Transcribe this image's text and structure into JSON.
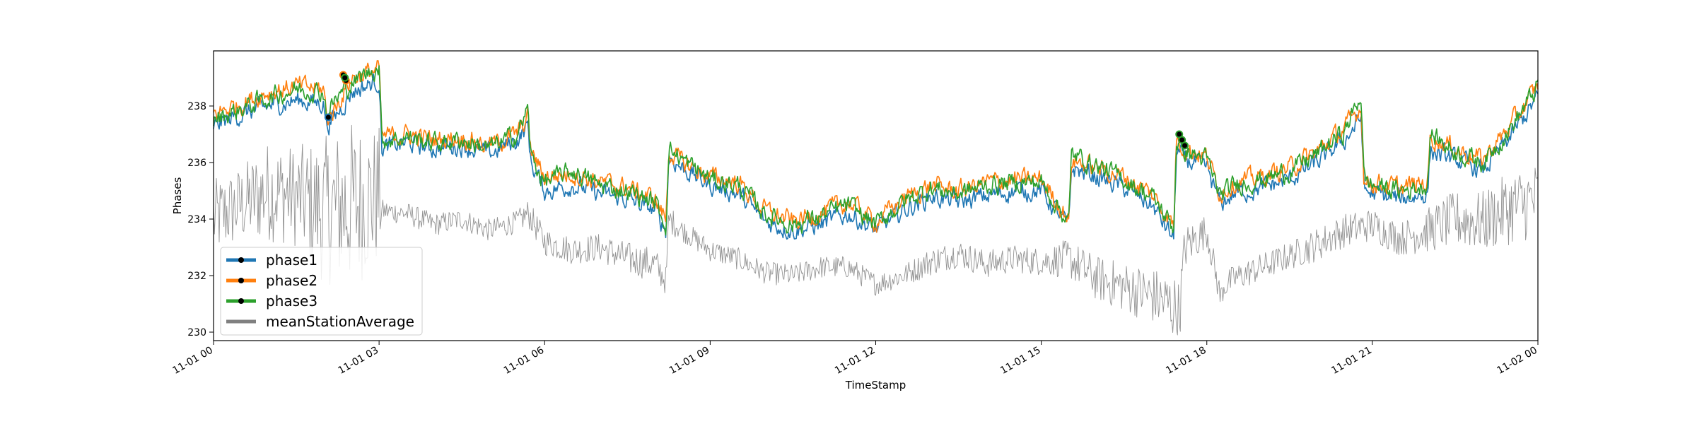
{
  "chart_data": {
    "type": "line",
    "title": "",
    "xlabel": "TimeStamp",
    "ylabel": "Phases",
    "xlim": [
      "2017-11-01 00:00",
      "2017-11-02 00:00"
    ],
    "ylim": [
      229.7,
      239.95
    ],
    "x_tick_labels": [
      "11-01 00",
      "11-01 03",
      "11-01 06",
      "11-01 09",
      "11-01 12",
      "11-01 15",
      "11-01 18",
      "11-01 21",
      "11-02 00"
    ],
    "x_tick_hours": [
      0,
      3,
      6,
      9,
      12,
      15,
      18,
      21,
      24
    ],
    "y_ticks": [
      230,
      232,
      234,
      236,
      238
    ],
    "grid": false,
    "legend_position": "lower-left",
    "x_unit": "hours since 11-01 00",
    "series": [
      {
        "name": "phase1",
        "color": "#1f77b4",
        "x": [
          0,
          0.5,
          1,
          1.5,
          2,
          2.05,
          2.2,
          2.5,
          3.0,
          3.05,
          3.5,
          4,
          4.5,
          5,
          5.5,
          5.7,
          5.75,
          6,
          6.5,
          7,
          7.5,
          8,
          8.2,
          8.25,
          8.5,
          9,
          9.5,
          10,
          10.5,
          11,
          11.5,
          12,
          12.5,
          13,
          13.5,
          14,
          14.5,
          15,
          15.5,
          15.55,
          16,
          16.5,
          17,
          17.4,
          17.45,
          17.6,
          18,
          18.25,
          18.3,
          18.5,
          19,
          19.5,
          20,
          20.5,
          20.8,
          20.85,
          21,
          21.5,
          22,
          22.05,
          22.5,
          23,
          23.5,
          24
        ],
        "y": [
          237.3,
          237.7,
          238.0,
          238.2,
          238.1,
          237.3,
          237.6,
          238.5,
          238.9,
          236.5,
          236.7,
          236.5,
          236.6,
          236.3,
          236.8,
          237.3,
          236.0,
          235.0,
          235.2,
          234.9,
          234.7,
          234.3,
          233.6,
          236.2,
          235.8,
          235.2,
          234.9,
          233.9,
          233.6,
          233.8,
          234.2,
          233.6,
          234.3,
          234.8,
          234.6,
          234.8,
          235.0,
          235.0,
          233.7,
          235.8,
          235.5,
          235.1,
          234.5,
          233.3,
          236.4,
          236.1,
          235.8,
          234.5,
          234.6,
          234.9,
          235.1,
          235.4,
          236.0,
          236.8,
          237.6,
          235.0,
          234.9,
          234.7,
          234.9,
          236.4,
          236.1,
          235.7,
          236.9,
          238.3
        ]
      },
      {
        "name": "phase2",
        "color": "#ff7f0e",
        "x": [
          0,
          0.5,
          1,
          1.5,
          2,
          2.05,
          2.2,
          2.5,
          3.0,
          3.05,
          3.5,
          4,
          4.5,
          5,
          5.5,
          5.7,
          5.75,
          6,
          6.5,
          7,
          7.5,
          8,
          8.2,
          8.25,
          8.5,
          9,
          9.5,
          10,
          10.5,
          11,
          11.5,
          12,
          12.5,
          13,
          13.5,
          14,
          14.5,
          15,
          15.5,
          15.55,
          16,
          16.5,
          17,
          17.4,
          17.45,
          17.6,
          18,
          18.25,
          18.3,
          18.5,
          19,
          19.5,
          20,
          20.5,
          20.8,
          20.85,
          21,
          21.5,
          22,
          22.05,
          22.5,
          23,
          23.5,
          24
        ],
        "y": [
          237.7,
          238.1,
          238.5,
          238.7,
          238.6,
          237.5,
          237.9,
          239.0,
          239.3,
          236.9,
          237.0,
          236.8,
          236.9,
          236.6,
          237.0,
          237.6,
          236.4,
          235.5,
          235.6,
          235.3,
          235.1,
          234.7,
          234.0,
          236.4,
          236.0,
          235.5,
          235.3,
          234.3,
          233.9,
          234.2,
          234.6,
          233.9,
          234.7,
          235.2,
          235.0,
          235.3,
          235.4,
          235.4,
          234.0,
          236.1,
          235.8,
          235.5,
          234.9,
          233.8,
          236.9,
          236.5,
          236.2,
          234.9,
          235.0,
          235.3,
          235.5,
          235.8,
          236.4,
          237.2,
          238.0,
          235.3,
          235.3,
          235.1,
          235.3,
          236.9,
          236.5,
          236.1,
          237.3,
          238.7
        ]
      },
      {
        "name": "phase3",
        "color": "#2ca02c",
        "x": [
          0,
          0.5,
          1,
          1.5,
          2,
          2.05,
          2.2,
          2.5,
          3.0,
          3.05,
          3.5,
          4,
          4.5,
          5,
          5.5,
          5.7,
          5.75,
          6,
          6.5,
          7,
          7.5,
          8,
          8.2,
          8.25,
          8.5,
          9,
          9.5,
          10,
          10.5,
          11,
          11.5,
          12,
          12.5,
          13,
          13.5,
          14,
          14.5,
          15,
          15.5,
          15.55,
          16,
          16.5,
          17,
          17.4,
          17.45,
          17.6,
          18,
          18.25,
          18.3,
          18.5,
          19,
          19.5,
          20,
          20.5,
          20.8,
          20.85,
          21,
          21.5,
          22,
          22.05,
          22.5,
          23,
          23.5,
          24
        ],
        "y": [
          237.5,
          237.9,
          238.3,
          238.6,
          238.5,
          237.7,
          238.2,
          238.8,
          239.4,
          236.8,
          236.9,
          236.7,
          236.8,
          236.5,
          237.0,
          237.9,
          236.2,
          235.3,
          235.7,
          235.2,
          235.0,
          234.6,
          233.8,
          236.5,
          236.1,
          235.4,
          235.2,
          234.2,
          233.8,
          234.1,
          234.5,
          233.8,
          234.6,
          235.1,
          234.9,
          235.2,
          235.3,
          235.3,
          233.9,
          236.3,
          235.9,
          235.4,
          234.8,
          233.7,
          236.8,
          236.4,
          236.1,
          234.8,
          234.9,
          235.2,
          235.4,
          235.7,
          236.3,
          237.1,
          238.4,
          235.4,
          235.2,
          235.0,
          235.2,
          237.0,
          236.4,
          236.0,
          237.2,
          238.7
        ]
      },
      {
        "name": "meanStationAverage",
        "color": "#808080",
        "x": [
          0,
          0.5,
          1,
          1.5,
          2,
          2.5,
          3.0,
          3.05,
          3.5,
          4,
          4.5,
          5,
          5.5,
          5.7,
          6,
          6.5,
          7,
          7.5,
          8,
          8.2,
          8.25,
          8.5,
          9,
          9.5,
          10,
          10.5,
          11,
          11.5,
          12,
          12.5,
          13,
          13.5,
          14,
          14.5,
          15,
          15.5,
          16,
          16.5,
          17,
          17.4,
          17.5,
          17.6,
          18,
          18.25,
          18.3,
          18.5,
          19,
          19.5,
          20,
          20.5,
          21,
          21.5,
          22,
          22.5,
          23,
          23.5,
          24
        ],
        "y": [
          234.0,
          234.5,
          235.0,
          234.8,
          234.3,
          234.5,
          234.8,
          234.3,
          234.2,
          233.8,
          234.0,
          233.6,
          233.9,
          234.2,
          233.2,
          232.9,
          233.0,
          232.6,
          232.4,
          231.8,
          234.0,
          233.6,
          232.9,
          232.6,
          232.1,
          232.0,
          232.3,
          232.3,
          231.7,
          232.0,
          232.5,
          232.8,
          232.4,
          232.6,
          232.5,
          232.6,
          231.9,
          231.6,
          231.3,
          230.9,
          230.6,
          233.0,
          233.6,
          231.2,
          231.6,
          231.9,
          232.3,
          232.7,
          233.1,
          233.6,
          233.8,
          233.3,
          233.6,
          234.0,
          233.9,
          234.4,
          234.7
        ],
        "oscillation_amplitude": [
          1.4,
          1.4,
          1.8,
          1.8,
          2.6,
          3.0,
          2.5,
          0.4,
          0.4,
          0.4,
          0.4,
          0.4,
          0.4,
          0.5,
          0.5,
          0.5,
          0.5,
          0.6,
          0.6,
          0.5,
          0.5,
          0.4,
          0.4,
          0.4,
          0.4,
          0.4,
          0.4,
          0.4,
          0.4,
          0.4,
          0.5,
          0.5,
          0.5,
          0.5,
          0.5,
          0.7,
          0.8,
          0.9,
          1.0,
          1.2,
          1.2,
          0.8,
          0.6,
          0.5,
          0.5,
          0.5,
          0.5,
          0.5,
          0.6,
          0.6,
          0.6,
          0.6,
          0.8,
          1.0,
          1.1,
          1.3,
          1.4
        ]
      }
    ],
    "markers": [
      {
        "series": "phase1",
        "points": [
          [
            2.08,
            237.6
          ]
        ]
      },
      {
        "series": "phase2",
        "points": [
          [
            2.35,
            239.1
          ],
          [
            2.4,
            238.9
          ]
        ]
      },
      {
        "series": "phase3",
        "points": [
          [
            2.38,
            239.0
          ],
          [
            17.5,
            237.0
          ],
          [
            17.55,
            236.8
          ],
          [
            17.6,
            236.6
          ]
        ]
      }
    ],
    "legend": [
      {
        "label": "phase1",
        "color": "#1f77b4"
      },
      {
        "label": "phase2",
        "color": "#ff7f0e"
      },
      {
        "label": "phase3",
        "color": "#2ca02c"
      },
      {
        "label": "meanStationAverage",
        "color": "#808080"
      }
    ]
  }
}
